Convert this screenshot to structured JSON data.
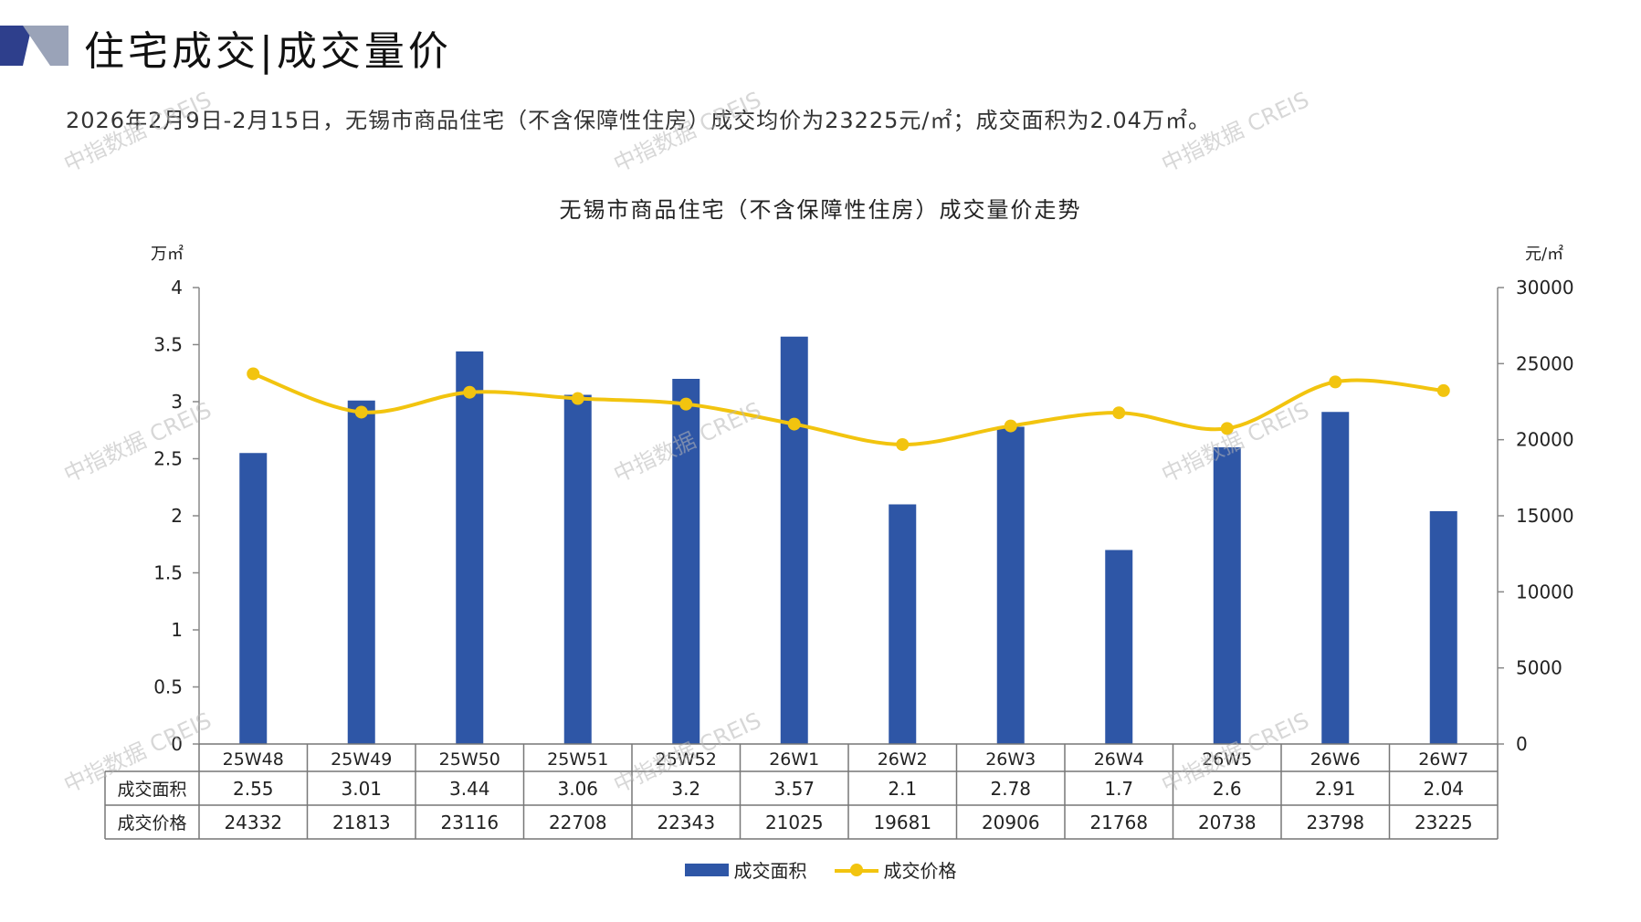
{
  "header": {
    "title": "住宅成交|成交量价",
    "summary": "2026年2月9日-2月15日，无锡市商品住宅（不含保障性住房）成交均价为23225元/㎡；成交面积为2.04万㎡。"
  },
  "colors": {
    "bar": "#2E56A6",
    "line": "#F2C40F",
    "axis": "#888888",
    "logo_dark": "#2E3F8C",
    "logo_light": "#9AA3B8"
  },
  "watermark": "中指数据 CREIS",
  "chart_data": {
    "type": "bar",
    "title": "无锡市商品住宅（不含保障性住房）成交量价走势",
    "categories": [
      "25W48",
      "25W49",
      "25W50",
      "25W51",
      "25W52",
      "26W1",
      "26W2",
      "26W3",
      "26W4",
      "26W5",
      "26W6",
      "26W7"
    ],
    "series": [
      {
        "name": "成交面积",
        "type": "bar",
        "axis": "left",
        "values": [
          2.55,
          3.01,
          3.44,
          3.06,
          3.2,
          3.57,
          2.1,
          2.78,
          1.7,
          2.6,
          2.91,
          2.04
        ],
        "labels": [
          "2.55",
          "3.01",
          "3.44",
          "3.06",
          "3.2",
          "3.57",
          "2.1",
          "2.78",
          "1.7",
          "2.6",
          "2.91",
          "2.04"
        ]
      },
      {
        "name": "成交价格",
        "type": "line",
        "axis": "right",
        "values": [
          24332,
          21813,
          23116,
          22708,
          22343,
          21025,
          19681,
          20906,
          21768,
          20738,
          23798,
          23225
        ],
        "labels": [
          "24332",
          "21813",
          "23116",
          "22708",
          "22343",
          "21025",
          "19681",
          "20906",
          "21768",
          "20738",
          "23798",
          "23225"
        ]
      }
    ],
    "y_left": {
      "label": "万㎡",
      "min": 0,
      "max": 4,
      "ticks": [
        "0",
        "0.5",
        "1",
        "1.5",
        "2",
        "2.5",
        "3",
        "3.5",
        "4"
      ]
    },
    "y_right": {
      "label": "元/㎡",
      "min": 0,
      "max": 30000,
      "ticks": [
        "0",
        "5000",
        "10000",
        "15000",
        "20000",
        "25000",
        "30000"
      ]
    },
    "table_row_labels": [
      "成交面积",
      "成交价格"
    ],
    "legend": [
      "成交面积",
      "成交价格"
    ],
    "legend_position": "bottom"
  }
}
